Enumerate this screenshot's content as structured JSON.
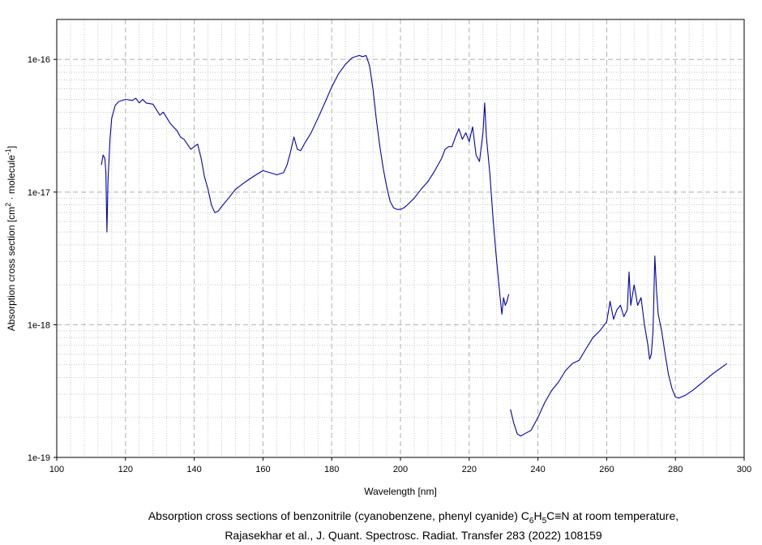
{
  "chart_data": {
    "type": "line",
    "title": "",
    "xlabel": "Wavelength [nm]",
    "ylabel_main": "Absorption cross section [cm",
    "ylabel_sup1": "2",
    "ylabel_mid": " · molecule",
    "ylabel_sup2": "-1",
    "ylabel_end": "]",
    "x_scale": "linear",
    "y_scale": "log",
    "xlim": [
      100,
      300
    ],
    "ylim": [
      1e-19,
      2e-16
    ],
    "x_ticks": [
      100,
      120,
      140,
      160,
      180,
      200,
      220,
      240,
      260,
      280,
      300
    ],
    "x_tick_labels": [
      "100",
      "120",
      "140",
      "160",
      "180",
      "200",
      "220",
      "240",
      "260",
      "280",
      "300"
    ],
    "y_ticks": [
      1e-19,
      1e-18,
      1e-17,
      1e-16
    ],
    "y_tick_labels": [
      "1e-19",
      "1e-18",
      "1e-17",
      "1e-16"
    ],
    "grid": true,
    "legend": "none",
    "line_color": "#0000cc",
    "series": [
      {
        "segments": [
          [
            [
              113,
              1.6e-17
            ],
            [
              113.5,
              1.9e-17
            ],
            [
              114,
              1.8e-17
            ],
            [
              114.3,
              1.4e-17
            ],
            [
              114.6,
              5e-18
            ],
            [
              114.9,
              1.2e-17
            ],
            [
              115.5,
              2.5e-17
            ],
            [
              116,
              3.6e-17
            ],
            [
              117,
              4.5e-17
            ],
            [
              118,
              4.8e-17
            ],
            [
              120,
              5e-17
            ],
            [
              122,
              4.9e-17
            ],
            [
              123,
              5.1e-17
            ],
            [
              124,
              4.7e-17
            ],
            [
              125,
              5e-17
            ],
            [
              126,
              4.7e-17
            ],
            [
              128,
              4.6e-17
            ],
            [
              130,
              3.8e-17
            ],
            [
              131,
              4e-17
            ],
            [
              133,
              3.3e-17
            ],
            [
              135,
              2.9e-17
            ],
            [
              136,
              2.6e-17
            ],
            [
              137,
              2.5e-17
            ],
            [
              138,
              2.3e-17
            ],
            [
              139,
              2.1e-17
            ],
            [
              140,
              2.2e-17
            ],
            [
              141,
              2.3e-17
            ],
            [
              142,
              1.8e-17
            ],
            [
              143,
              1.3e-17
            ],
            [
              144,
              1.05e-17
            ],
            [
              145,
              8e-18
            ],
            [
              146,
              7e-18
            ],
            [
              147,
              7.2e-18
            ],
            [
              148,
              7.8e-18
            ],
            [
              150,
              9e-18
            ],
            [
              152,
              1.05e-17
            ],
            [
              154,
              1.15e-17
            ],
            [
              156,
              1.25e-17
            ],
            [
              158,
              1.35e-17
            ],
            [
              160,
              1.45e-17
            ],
            [
              162,
              1.4e-17
            ],
            [
              164,
              1.35e-17
            ],
            [
              166,
              1.4e-17
            ],
            [
              167,
              1.6e-17
            ],
            [
              168,
              2e-17
            ],
            [
              169,
              2.6e-17
            ],
            [
              170,
              2.1e-17
            ],
            [
              171,
              2.05e-17
            ],
            [
              172,
              2.3e-17
            ],
            [
              174,
              2.8e-17
            ],
            [
              176,
              3.6e-17
            ],
            [
              178,
              4.7e-17
            ],
            [
              180,
              6.2e-17
            ],
            [
              182,
              7.8e-17
            ],
            [
              184,
              9.2e-17
            ],
            [
              186,
              1.03e-16
            ],
            [
              188,
              1.07e-16
            ],
            [
              189,
              1.05e-16
            ],
            [
              190,
              1.07e-16
            ],
            [
              191,
              9e-17
            ],
            [
              192,
              6e-17
            ],
            [
              193,
              3.5e-17
            ],
            [
              194,
              2.2e-17
            ],
            [
              195,
              1.5e-17
            ],
            [
              196,
              1.1e-17
            ],
            [
              197,
              8.5e-18
            ],
            [
              198,
              7.6e-18
            ],
            [
              199,
              7.4e-18
            ],
            [
              200,
              7.4e-18
            ],
            [
              201,
              7.6e-18
            ],
            [
              202,
              8e-18
            ],
            [
              204,
              9e-18
            ],
            [
              206,
              1.05e-17
            ],
            [
              208,
              1.2e-17
            ],
            [
              210,
              1.45e-17
            ],
            [
              212,
              1.8e-17
            ],
            [
              213,
              2.1e-17
            ],
            [
              214,
              2.2e-17
            ],
            [
              215,
              2.2e-17
            ],
            [
              216,
              2.6e-17
            ],
            [
              217,
              3e-17
            ],
            [
              218,
              2.5e-17
            ],
            [
              219,
              2.8e-17
            ],
            [
              220,
              2.4e-17
            ],
            [
              221,
              3.1e-17
            ],
            [
              222,
              1.9e-17
            ],
            [
              223,
              1.7e-17
            ],
            [
              224,
              2.8e-17
            ],
            [
              224.5,
              4.7e-17
            ],
            [
              225,
              2.6e-17
            ],
            [
              226,
              1.4e-17
            ],
            [
              227,
              6e-18
            ],
            [
              228,
              3e-18
            ],
            [
              229,
              1.6e-18
            ],
            [
              229.5,
              1.2e-18
            ],
            [
              230,
              1.6e-18
            ],
            [
              230.5,
              1.4e-18
            ],
            [
              231,
              1.5e-18
            ],
            [
              231.5,
              1.7e-18
            ]
          ],
          [
            [
              232,
              2.3e-19
            ],
            [
              233,
              1.8e-19
            ],
            [
              234,
              1.5e-19
            ],
            [
              235,
              1.45e-19
            ],
            [
              236,
              1.5e-19
            ],
            [
              238,
              1.6e-19
            ],
            [
              240,
              2e-19
            ],
            [
              242,
              2.6e-19
            ],
            [
              244,
              3.2e-19
            ],
            [
              246,
              3.7e-19
            ],
            [
              248,
              4.5e-19
            ],
            [
              250,
              5.1e-19
            ],
            [
              252,
              5.4e-19
            ],
            [
              254,
              6.6e-19
            ],
            [
              256,
              8e-19
            ],
            [
              258,
              9e-19
            ],
            [
              260,
              1.05e-18
            ],
            [
              261,
              1.5e-18
            ],
            [
              262,
              1.1e-18
            ],
            [
              263,
              1.3e-18
            ],
            [
              264,
              1.4e-18
            ],
            [
              265,
              1.15e-18
            ],
            [
              266,
              1.3e-18
            ],
            [
              266.5,
              2.5e-18
            ],
            [
              267,
              1.4e-18
            ],
            [
              268,
              2e-18
            ],
            [
              269,
              1.4e-18
            ],
            [
              270,
              1.6e-18
            ],
            [
              271,
              1e-18
            ],
            [
              272,
              7e-19
            ],
            [
              272.5,
              5.5e-19
            ],
            [
              273,
              6e-19
            ],
            [
              273.5,
              9e-19
            ],
            [
              274,
              3.3e-18
            ],
            [
              274.5,
              1.8e-18
            ],
            [
              275,
              1.2e-18
            ],
            [
              276,
              9e-19
            ],
            [
              277,
              6e-19
            ],
            [
              278,
              4.2e-19
            ],
            [
              279,
              3.3e-19
            ],
            [
              280,
              2.85e-19
            ],
            [
              281,
              2.8e-19
            ],
            [
              283,
              2.95e-19
            ],
            [
              285,
              3.2e-19
            ],
            [
              288,
              3.7e-19
            ],
            [
              291,
              4.3e-19
            ],
            [
              295,
              5.1e-19
            ]
          ]
        ]
      }
    ]
  },
  "caption": {
    "line1_a": "Absorption cross sections of benzonitrile (cyanobenzene, phenyl cyanide) C",
    "line1_sub1": "6",
    "line1_b": "H",
    "line1_sub2": "5",
    "line1_c": "C≡N at room temperature,",
    "line2": "Rajasekhar et al., J. Quant. Spectrosc. Radiat. Transfer 283 (2022) 108159"
  }
}
